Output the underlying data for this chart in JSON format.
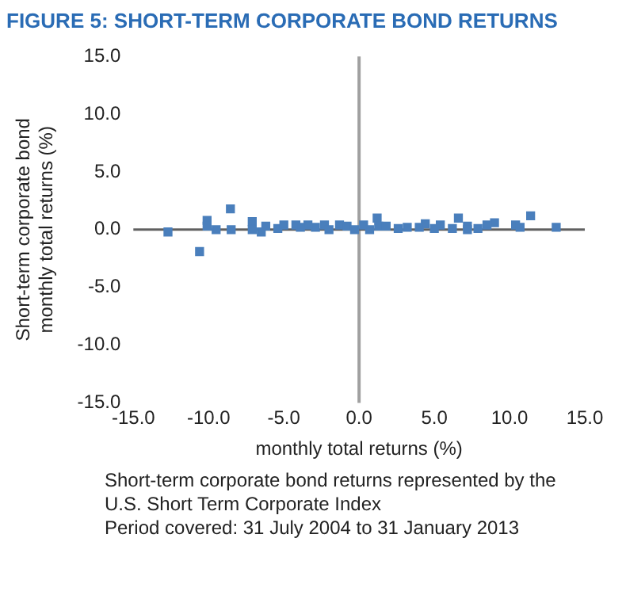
{
  "chart_data": {
    "type": "scatter",
    "title": "FIGURE 5: SHORT-TERM CORPORATE BOND RETURNS",
    "xlabel": "monthly total returns (%)",
    "ylabel": "Short-term corporate bond monthly total returns (%)",
    "x": [
      -12.7,
      -10.6,
      -10.1,
      -10.1,
      -9.5,
      -8.55,
      -8.5,
      -7.1,
      -7.1,
      -6.5,
      -6.2,
      -5.4,
      -5.0,
      -4.2,
      -3.9,
      -3.4,
      -2.9,
      -2.3,
      -2.0,
      -1.3,
      -0.8,
      -0.3,
      0.3,
      0.7,
      1.2,
      1.3,
      1.8,
      2.6,
      3.2,
      4.0,
      4.4,
      5.0,
      5.4,
      6.2,
      6.6,
      7.2,
      7.2,
      7.9,
      8.5,
      9.0,
      10.4,
      10.7,
      11.4,
      13.1
    ],
    "values": [
      -0.2,
      -1.9,
      0.8,
      0.3,
      0,
      1.8,
      0,
      0.7,
      0,
      -0.2,
      0.3,
      0.1,
      0.4,
      0.4,
      0.2,
      0.4,
      0.2,
      0.4,
      0,
      0.4,
      0.3,
      0,
      0.4,
      0,
      1.0,
      0.3,
      0.3,
      0.1,
      0.2,
      0.2,
      0.5,
      0.1,
      0.4,
      0.1,
      1.0,
      0.3,
      0,
      0.1,
      0.4,
      0.6,
      0.4,
      0.2,
      1.2,
      0.2
    ],
    "color": "#4a7fbc",
    "marker": "square",
    "grid": false,
    "legend": false,
    "ref_lines": [
      {
        "axis": "x",
        "value": 0,
        "color": "#a0a0a0"
      },
      {
        "axis": "y",
        "value": 0,
        "color": "#606060"
      }
    ],
    "xlim": [
      -15,
      15
    ],
    "xticks": [
      {
        "value": -15,
        "label": "-15.0"
      },
      {
        "value": -10,
        "label": "-10.0"
      },
      {
        "value": -5,
        "label": "-5.0"
      },
      {
        "value": 0,
        "label": "0.0"
      },
      {
        "value": 5,
        "label": "5.0"
      },
      {
        "value": 10,
        "label": "10.0"
      },
      {
        "value": 15,
        "label": "15.0"
      }
    ],
    "ylim": [
      -15,
      15
    ],
    "yticks": [
      {
        "value": -15,
        "label": "-15.0"
      },
      {
        "value": -10,
        "label": "-10.0"
      },
      {
        "value": -5,
        "label": "-5.0"
      },
      {
        "value": 0,
        "label": "0.0"
      },
      {
        "value": 5,
        "label": "5.0"
      },
      {
        "value": 10,
        "label": "10.0"
      },
      {
        "value": 15,
        "label": "15.0"
      }
    ],
    "annotations": [
      "Short-term corporate bond returns represented by the U.S. Short Term Corporate Index",
      "Period covered: 31 July 2004 to 31 January 2013"
    ]
  }
}
